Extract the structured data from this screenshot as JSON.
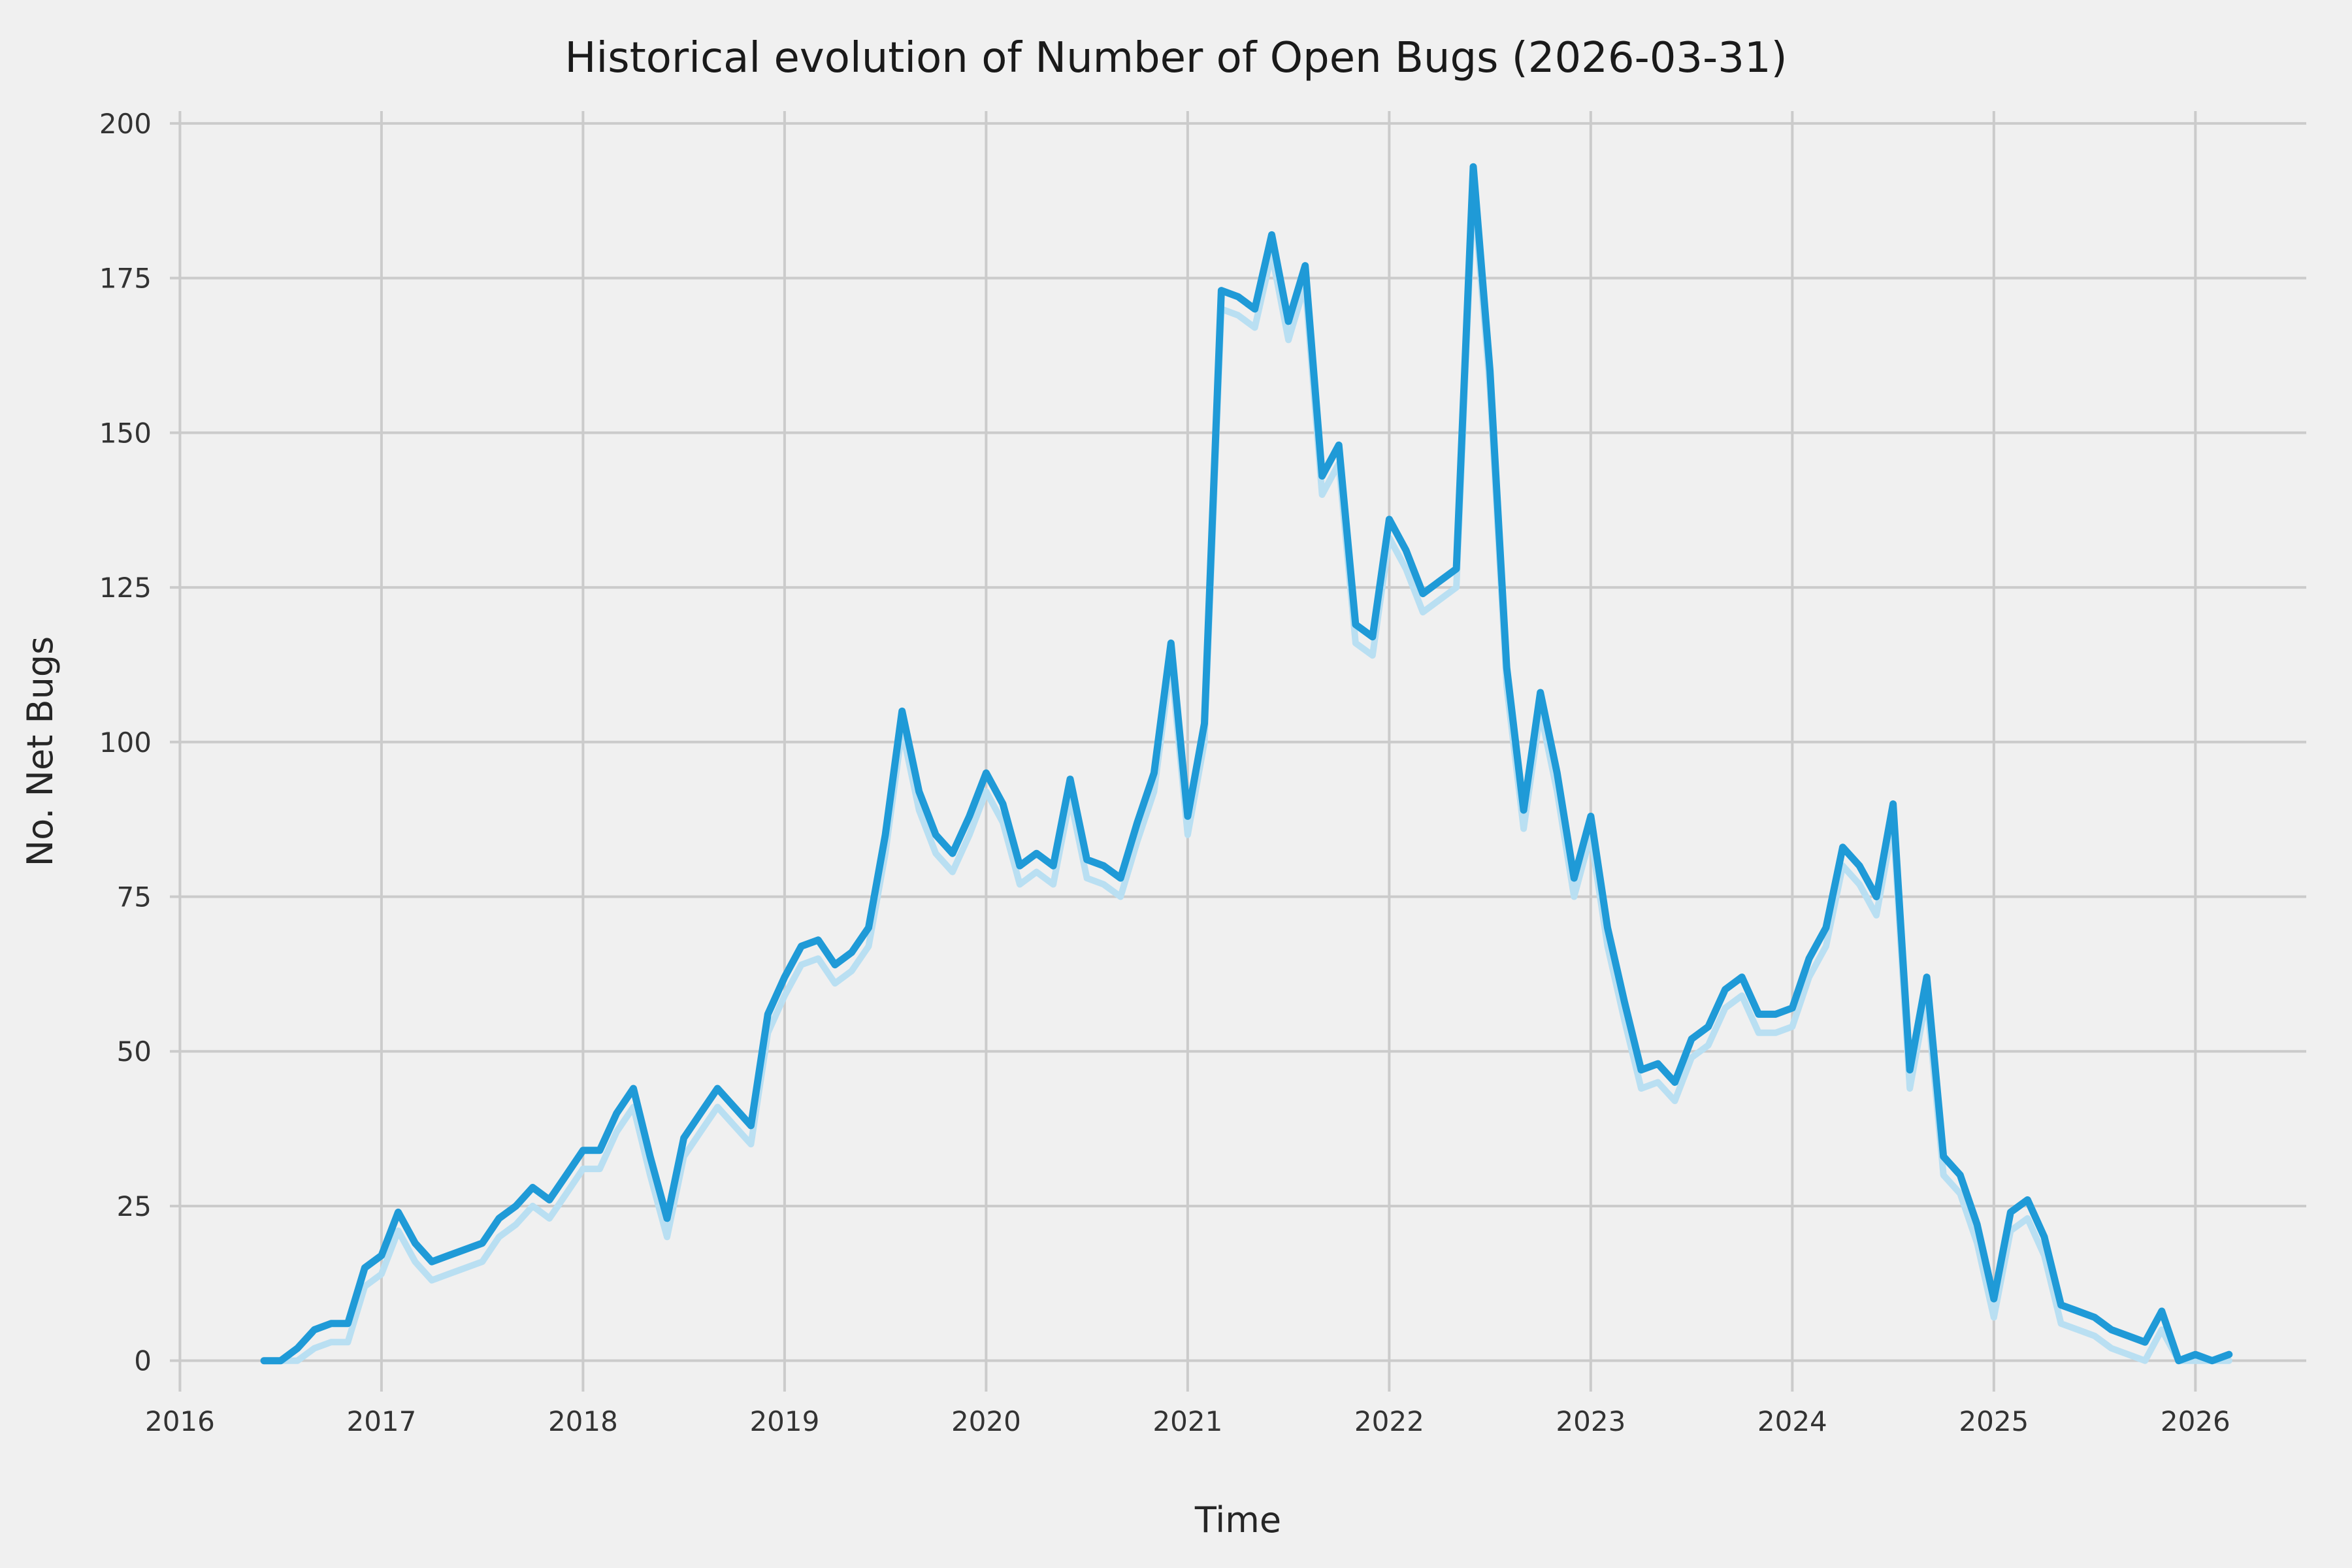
{
  "chart_data": {
    "type": "line",
    "title": "Historical evolution of Number of Open Bugs (2026-03-31)",
    "xlabel": "Time",
    "ylabel": "No. Net Bugs",
    "xlim": [
      2015.95,
      2026.55
    ],
    "ylim": [
      -5,
      202
    ],
    "xticks": [
      2016,
      2017,
      2018,
      2019,
      2020,
      2021,
      2022,
      2023,
      2024,
      2025,
      2026
    ],
    "yticks": [
      0,
      25,
      50,
      75,
      100,
      125,
      150,
      175,
      200
    ],
    "grid": true,
    "legend": "none",
    "colors": {
      "background": "#f0f0f0",
      "grid": "#cbcbcb",
      "main_line": "#1f9ad7",
      "shadow_line": "#b9dff2",
      "title_text": "#1a1a1a",
      "tick_text": "#333333"
    },
    "x": [
      2016.417,
      2016.5,
      2016.583,
      2016.667,
      2016.75,
      2016.833,
      2016.917,
      2017.0,
      2017.083,
      2017.167,
      2017.25,
      2017.333,
      2017.417,
      2017.5,
      2017.583,
      2017.667,
      2017.75,
      2017.833,
      2017.917,
      2018.0,
      2018.083,
      2018.167,
      2018.25,
      2018.333,
      2018.417,
      2018.5,
      2018.583,
      2018.667,
      2018.75,
      2018.833,
      2018.917,
      2019.0,
      2019.083,
      2019.167,
      2019.25,
      2019.333,
      2019.417,
      2019.5,
      2019.583,
      2019.667,
      2019.75,
      2019.833,
      2019.917,
      2020.0,
      2020.083,
      2020.167,
      2020.25,
      2020.333,
      2020.417,
      2020.5,
      2020.583,
      2020.667,
      2020.75,
      2020.833,
      2020.917,
      2021.0,
      2021.083,
      2021.167,
      2021.25,
      2021.333,
      2021.417,
      2021.5,
      2021.583,
      2021.667,
      2021.75,
      2021.833,
      2021.917,
      2022.0,
      2022.083,
      2022.167,
      2022.25,
      2022.333,
      2022.417,
      2022.5,
      2022.583,
      2022.667,
      2022.75,
      2022.833,
      2022.917,
      2023.0,
      2023.083,
      2023.167,
      2023.25,
      2023.333,
      2023.417,
      2023.5,
      2023.583,
      2023.667,
      2023.75,
      2023.833,
      2023.917,
      2024.0,
      2024.083,
      2024.167,
      2024.25,
      2024.333,
      2024.417,
      2024.5,
      2024.583,
      2024.667,
      2024.75,
      2024.833,
      2024.917,
      2025.0,
      2025.083,
      2025.167,
      2025.25,
      2025.333,
      2025.417,
      2025.5,
      2025.583,
      2025.667,
      2025.75,
      2025.833,
      2025.917,
      2026.0,
      2026.083,
      2026.167
    ],
    "series": [
      {
        "name": "shadow",
        "values": [
          0,
          0,
          0,
          2,
          3,
          3,
          12,
          14,
          21,
          16,
          13,
          14,
          15,
          16,
          20,
          22,
          25,
          23,
          27,
          31,
          31,
          37,
          41,
          30,
          20,
          33,
          37,
          41,
          38,
          35,
          53,
          59,
          64,
          65,
          61,
          63,
          67,
          82,
          102,
          89,
          82,
          79,
          85,
          92,
          87,
          77,
          79,
          77,
          91,
          78,
          77,
          75,
          84,
          92,
          113,
          85,
          100,
          170,
          169,
          167,
          179,
          165,
          174,
          140,
          145,
          116,
          114,
          133,
          128,
          121,
          123,
          125,
          190,
          157,
          109,
          86,
          105,
          92,
          75,
          85,
          67,
          55,
          44,
          45,
          42,
          49,
          51,
          57,
          59,
          53,
          53,
          54,
          62,
          67,
          80,
          77,
          72,
          87,
          44,
          59,
          30,
          27,
          19,
          7,
          21,
          23,
          17,
          6,
          5,
          4,
          2,
          1,
          0,
          5,
          0,
          0,
          0,
          0
        ]
      },
      {
        "name": "open_bugs",
        "values": [
          0,
          0,
          2,
          5,
          6,
          6,
          15,
          17,
          24,
          19,
          16,
          17,
          18,
          19,
          23,
          25,
          28,
          26,
          30,
          34,
          34,
          40,
          44,
          33,
          23,
          36,
          40,
          44,
          41,
          38,
          56,
          62,
          67,
          68,
          64,
          66,
          70,
          85,
          105,
          92,
          85,
          82,
          88,
          95,
          90,
          80,
          82,
          80,
          94,
          81,
          80,
          78,
          87,
          95,
          116,
          88,
          103,
          173,
          172,
          170,
          182,
          168,
          177,
          143,
          148,
          119,
          117,
          136,
          131,
          124,
          126,
          128,
          193,
          160,
          112,
          89,
          108,
          95,
          78,
          88,
          70,
          58,
          47,
          48,
          45,
          52,
          54,
          60,
          62,
          56,
          56,
          57,
          65,
          70,
          83,
          80,
          75,
          90,
          47,
          62,
          33,
          30,
          22,
          10,
          24,
          26,
          20,
          9,
          8,
          7,
          5,
          4,
          3,
          8,
          0,
          1,
          0,
          1
        ]
      }
    ]
  }
}
